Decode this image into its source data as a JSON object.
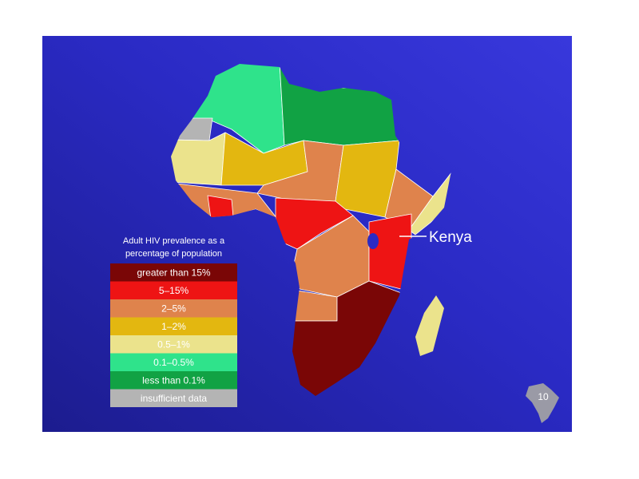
{
  "legend": {
    "title_lines": [
      "Adult HIV prevalence as a",
      "percentage of population"
    ],
    "items": [
      {
        "label": "greater than 15%",
        "color": "#7a0606"
      },
      {
        "label": "5–15%",
        "color": "#ee1414"
      },
      {
        "label": "2–5%",
        "color": "#df834c"
      },
      {
        "label": "1–2%",
        "color": "#e3b710"
      },
      {
        "label": "0.5–1%",
        "color": "#ebe38c"
      },
      {
        "label": "0.1–0.5%",
        "color": "#2fe38b"
      },
      {
        "label": "less than 0.1%",
        "color": "#11a244"
      },
      {
        "label": "insufficient data",
        "color": "#b4b4b4"
      }
    ]
  },
  "annotation": "Kenya",
  "slide_number": "10"
}
